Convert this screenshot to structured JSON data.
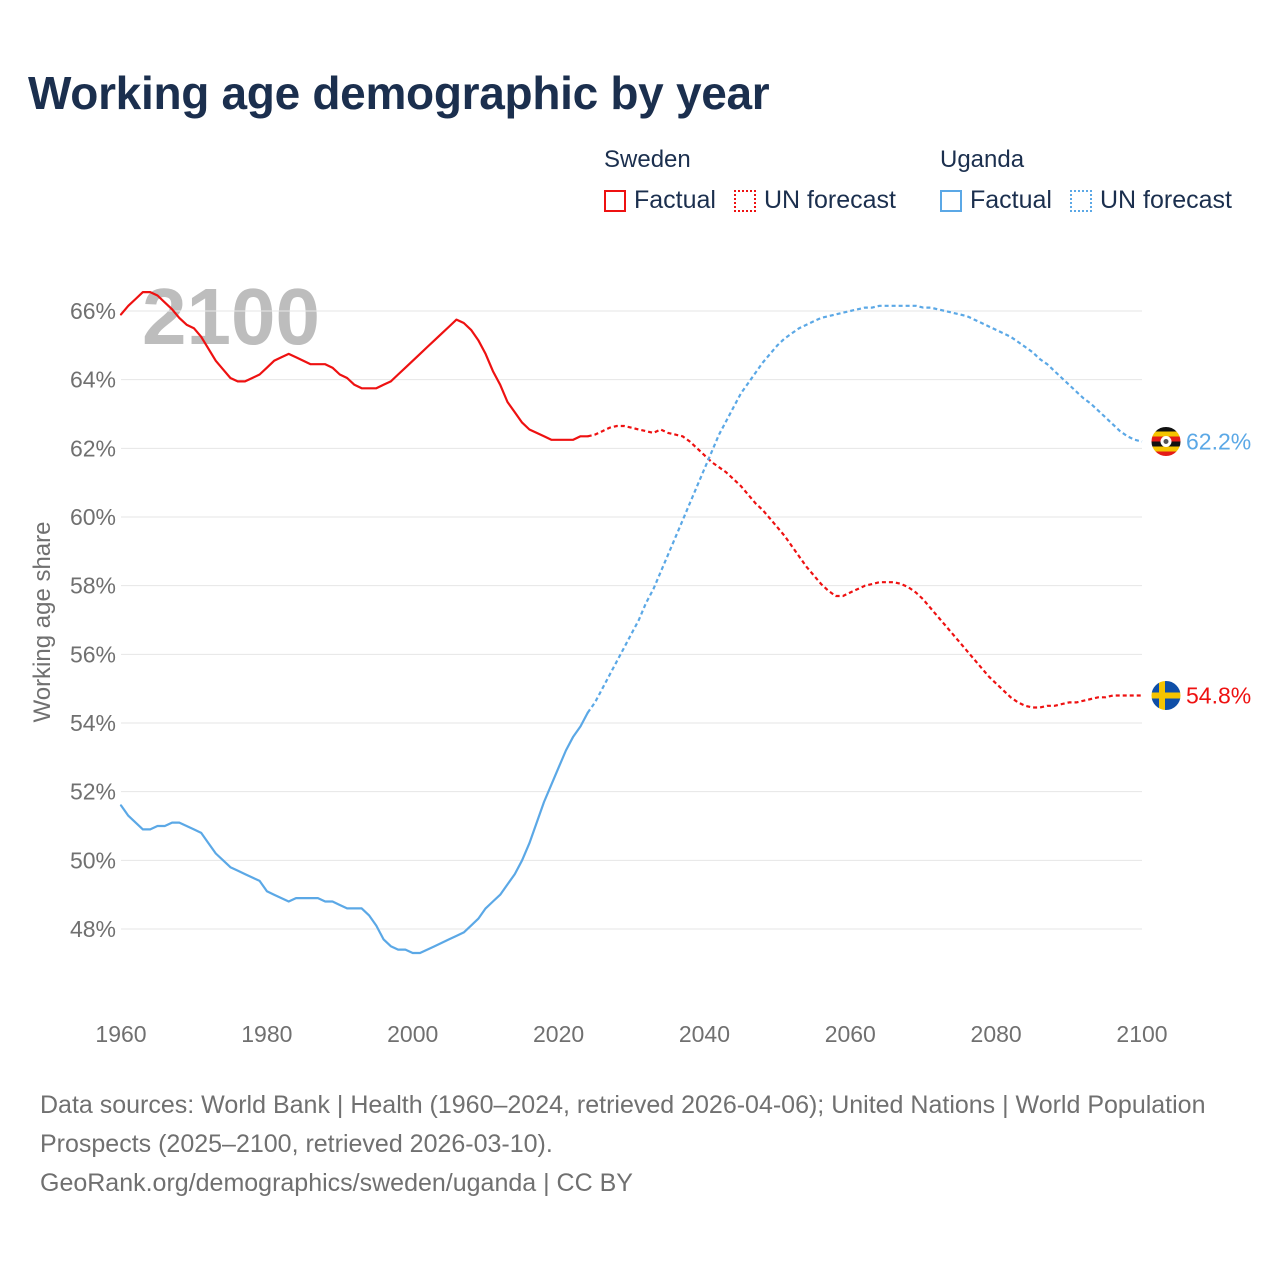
{
  "title": "Working age demographic by year",
  "legend": {
    "groups": [
      {
        "name": "Sweden",
        "color": "#ee1111",
        "factual_label": "Factual",
        "forecast_label": "UN forecast"
      },
      {
        "name": "Uganda",
        "color": "#5ba8e6",
        "factual_label": "Factual",
        "forecast_label": "UN forecast"
      }
    ]
  },
  "footer": {
    "sources": "Data sources: World Bank | Health (1960–2024, retrieved 2026-04-06); United Nations | World Population Prospects (2025–2100, retrieved 2026-03-10).",
    "attribution": "GeoRank.org/demographics/sweden/uganda | CC BY"
  },
  "chart_data": {
    "type": "line",
    "title": "Working age demographic by year",
    "ylabel": "Working age share",
    "xlabel": "",
    "year_watermark": "2100",
    "xlim": [
      1960,
      2100
    ],
    "ylim": [
      46,
      67
    ],
    "x_ticks": [
      1960,
      1980,
      2000,
      2020,
      2040,
      2060,
      2080,
      2100
    ],
    "y_ticks": [
      48,
      50,
      52,
      54,
      56,
      58,
      60,
      62,
      64,
      66
    ],
    "y_tick_suffix": "%",
    "grid": true,
    "forecast_start": 2024,
    "series": [
      {
        "name": "Sweden",
        "color": "#ee1111",
        "flag": "sweden-flag",
        "end_label": "54.8%",
        "points": [
          [
            1960,
            65.9
          ],
          [
            1961,
            66.15
          ],
          [
            1962,
            66.35
          ],
          [
            1963,
            66.55
          ],
          [
            1964,
            66.55
          ],
          [
            1965,
            66.45
          ],
          [
            1966,
            66.25
          ],
          [
            1967,
            66.05
          ],
          [
            1968,
            65.8
          ],
          [
            1969,
            65.6
          ],
          [
            1970,
            65.5
          ],
          [
            1971,
            65.25
          ],
          [
            1972,
            64.9
          ],
          [
            1973,
            64.55
          ],
          [
            1974,
            64.3
          ],
          [
            1975,
            64.05
          ],
          [
            1976,
            63.95
          ],
          [
            1977,
            63.95
          ],
          [
            1978,
            64.05
          ],
          [
            1979,
            64.15
          ],
          [
            1980,
            64.35
          ],
          [
            1981,
            64.55
          ],
          [
            1982,
            64.65
          ],
          [
            1983,
            64.75
          ],
          [
            1984,
            64.65
          ],
          [
            1985,
            64.55
          ],
          [
            1986,
            64.45
          ],
          [
            1987,
            64.45
          ],
          [
            1988,
            64.45
          ],
          [
            1989,
            64.35
          ],
          [
            1990,
            64.15
          ],
          [
            1991,
            64.05
          ],
          [
            1992,
            63.85
          ],
          [
            1993,
            63.75
          ],
          [
            1994,
            63.75
          ],
          [
            1995,
            63.75
          ],
          [
            1996,
            63.85
          ],
          [
            1997,
            63.95
          ],
          [
            1998,
            64.15
          ],
          [
            1999,
            64.35
          ],
          [
            2000,
            64.55
          ],
          [
            2001,
            64.75
          ],
          [
            2002,
            64.95
          ],
          [
            2003,
            65.15
          ],
          [
            2004,
            65.35
          ],
          [
            2005,
            65.55
          ],
          [
            2006,
            65.75
          ],
          [
            2007,
            65.65
          ],
          [
            2008,
            65.45
          ],
          [
            2009,
            65.15
          ],
          [
            2010,
            64.75
          ],
          [
            2011,
            64.25
          ],
          [
            2012,
            63.85
          ],
          [
            2013,
            63.35
          ],
          [
            2014,
            63.05
          ],
          [
            2015,
            62.75
          ],
          [
            2016,
            62.55
          ],
          [
            2017,
            62.45
          ],
          [
            2018,
            62.35
          ],
          [
            2019,
            62.25
          ],
          [
            2020,
            62.25
          ],
          [
            2021,
            62.25
          ],
          [
            2022,
            62.25
          ],
          [
            2023,
            62.35
          ],
          [
            2024,
            62.35
          ],
          [
            2025,
            62.4
          ],
          [
            2026,
            62.5
          ],
          [
            2027,
            62.6
          ],
          [
            2028,
            62.65
          ],
          [
            2029,
            62.65
          ],
          [
            2030,
            62.6
          ],
          [
            2031,
            62.55
          ],
          [
            2032,
            62.5
          ],
          [
            2033,
            62.45
          ],
          [
            2034,
            62.55
          ],
          [
            2035,
            62.45
          ],
          [
            2036,
            62.4
          ],
          [
            2037,
            62.35
          ],
          [
            2038,
            62.2
          ],
          [
            2039,
            62.0
          ],
          [
            2040,
            61.8
          ],
          [
            2041,
            61.6
          ],
          [
            2042,
            61.45
          ],
          [
            2043,
            61.3
          ],
          [
            2044,
            61.1
          ],
          [
            2045,
            60.9
          ],
          [
            2046,
            60.65
          ],
          [
            2047,
            60.4
          ],
          [
            2048,
            60.2
          ],
          [
            2049,
            59.95
          ],
          [
            2050,
            59.7
          ],
          [
            2051,
            59.45
          ],
          [
            2052,
            59.15
          ],
          [
            2053,
            58.85
          ],
          [
            2054,
            58.55
          ],
          [
            2055,
            58.3
          ],
          [
            2056,
            58.05
          ],
          [
            2057,
            57.85
          ],
          [
            2058,
            57.7
          ],
          [
            2059,
            57.7
          ],
          [
            2060,
            57.8
          ],
          [
            2061,
            57.9
          ],
          [
            2062,
            58.0
          ],
          [
            2063,
            58.05
          ],
          [
            2064,
            58.1
          ],
          [
            2065,
            58.1
          ],
          [
            2066,
            58.1
          ],
          [
            2067,
            58.05
          ],
          [
            2068,
            57.95
          ],
          [
            2069,
            57.8
          ],
          [
            2070,
            57.6
          ],
          [
            2071,
            57.35
          ],
          [
            2072,
            57.1
          ],
          [
            2073,
            56.85
          ],
          [
            2074,
            56.6
          ],
          [
            2075,
            56.35
          ],
          [
            2076,
            56.1
          ],
          [
            2077,
            55.85
          ],
          [
            2078,
            55.6
          ],
          [
            2079,
            55.35
          ],
          [
            2080,
            55.15
          ],
          [
            2081,
            54.95
          ],
          [
            2082,
            54.75
          ],
          [
            2083,
            54.6
          ],
          [
            2084,
            54.5
          ],
          [
            2085,
            54.45
          ],
          [
            2086,
            54.45
          ],
          [
            2087,
            54.5
          ],
          [
            2088,
            54.5
          ],
          [
            2089,
            54.55
          ],
          [
            2090,
            54.6
          ],
          [
            2091,
            54.6
          ],
          [
            2092,
            54.65
          ],
          [
            2093,
            54.7
          ],
          [
            2094,
            54.75
          ],
          [
            2095,
            54.75
          ],
          [
            2096,
            54.8
          ],
          [
            2097,
            54.8
          ],
          [
            2098,
            54.8
          ],
          [
            2099,
            54.8
          ],
          [
            2100,
            54.8
          ]
        ]
      },
      {
        "name": "Uganda",
        "color": "#5ba8e6",
        "flag": "uganda-flag",
        "end_label": "62.2%",
        "points": [
          [
            1960,
            51.6
          ],
          [
            1961,
            51.3
          ],
          [
            1962,
            51.1
          ],
          [
            1963,
            50.9
          ],
          [
            1964,
            50.9
          ],
          [
            1965,
            51.0
          ],
          [
            1966,
            51.0
          ],
          [
            1967,
            51.1
          ],
          [
            1968,
            51.1
          ],
          [
            1969,
            51.0
          ],
          [
            1970,
            50.9
          ],
          [
            1971,
            50.8
          ],
          [
            1972,
            50.5
          ],
          [
            1973,
            50.2
          ],
          [
            1974,
            50.0
          ],
          [
            1975,
            49.8
          ],
          [
            1976,
            49.7
          ],
          [
            1977,
            49.6
          ],
          [
            1978,
            49.5
          ],
          [
            1979,
            49.4
          ],
          [
            1980,
            49.1
          ],
          [
            1981,
            49.0
          ],
          [
            1982,
            48.9
          ],
          [
            1983,
            48.8
          ],
          [
            1984,
            48.9
          ],
          [
            1985,
            48.9
          ],
          [
            1986,
            48.9
          ],
          [
            1987,
            48.9
          ],
          [
            1988,
            48.8
          ],
          [
            1989,
            48.8
          ],
          [
            1990,
            48.7
          ],
          [
            1991,
            48.6
          ],
          [
            1992,
            48.6
          ],
          [
            1993,
            48.6
          ],
          [
            1994,
            48.4
          ],
          [
            1995,
            48.1
          ],
          [
            1996,
            47.7
          ],
          [
            1997,
            47.5
          ],
          [
            1998,
            47.4
          ],
          [
            1999,
            47.4
          ],
          [
            2000,
            47.3
          ],
          [
            2001,
            47.3
          ],
          [
            2002,
            47.4
          ],
          [
            2003,
            47.5
          ],
          [
            2004,
            47.6
          ],
          [
            2005,
            47.7
          ],
          [
            2006,
            47.8
          ],
          [
            2007,
            47.9
          ],
          [
            2008,
            48.1
          ],
          [
            2009,
            48.3
          ],
          [
            2010,
            48.6
          ],
          [
            2011,
            48.8
          ],
          [
            2012,
            49.0
          ],
          [
            2013,
            49.3
          ],
          [
            2014,
            49.6
          ],
          [
            2015,
            50.0
          ],
          [
            2016,
            50.5
          ],
          [
            2017,
            51.1
          ],
          [
            2018,
            51.7
          ],
          [
            2019,
            52.2
          ],
          [
            2020,
            52.7
          ],
          [
            2021,
            53.2
          ],
          [
            2022,
            53.6
          ],
          [
            2023,
            53.9
          ],
          [
            2024,
            54.3
          ],
          [
            2025,
            54.6
          ],
          [
            2026,
            55.0
          ],
          [
            2027,
            55.4
          ],
          [
            2028,
            55.8
          ],
          [
            2029,
            56.2
          ],
          [
            2030,
            56.6
          ],
          [
            2031,
            57.0
          ],
          [
            2032,
            57.5
          ],
          [
            2033,
            57.9
          ],
          [
            2034,
            58.4
          ],
          [
            2035,
            58.9
          ],
          [
            2036,
            59.4
          ],
          [
            2037,
            59.9
          ],
          [
            2038,
            60.4
          ],
          [
            2039,
            60.9
          ],
          [
            2040,
            61.4
          ],
          [
            2041,
            61.9
          ],
          [
            2042,
            62.4
          ],
          [
            2043,
            62.8
          ],
          [
            2044,
            63.2
          ],
          [
            2045,
            63.6
          ],
          [
            2046,
            63.9
          ],
          [
            2047,
            64.2
          ],
          [
            2048,
            64.5
          ],
          [
            2049,
            64.75
          ],
          [
            2050,
            65.0
          ],
          [
            2051,
            65.2
          ],
          [
            2052,
            65.35
          ],
          [
            2053,
            65.5
          ],
          [
            2054,
            65.6
          ],
          [
            2055,
            65.7
          ],
          [
            2056,
            65.8
          ],
          [
            2057,
            65.85
          ],
          [
            2058,
            65.9
          ],
          [
            2059,
            65.95
          ],
          [
            2060,
            66.0
          ],
          [
            2061,
            66.05
          ],
          [
            2062,
            66.1
          ],
          [
            2063,
            66.1
          ],
          [
            2064,
            66.15
          ],
          [
            2065,
            66.15
          ],
          [
            2066,
            66.15
          ],
          [
            2067,
            66.15
          ],
          [
            2068,
            66.15
          ],
          [
            2069,
            66.15
          ],
          [
            2070,
            66.1
          ],
          [
            2071,
            66.1
          ],
          [
            2072,
            66.05
          ],
          [
            2073,
            66.0
          ],
          [
            2074,
            65.95
          ],
          [
            2075,
            65.9
          ],
          [
            2076,
            65.85
          ],
          [
            2077,
            65.75
          ],
          [
            2078,
            65.65
          ],
          [
            2079,
            65.55
          ],
          [
            2080,
            65.45
          ],
          [
            2081,
            65.35
          ],
          [
            2082,
            65.25
          ],
          [
            2083,
            65.1
          ],
          [
            2084,
            64.95
          ],
          [
            2085,
            64.8
          ],
          [
            2086,
            64.6
          ],
          [
            2087,
            64.45
          ],
          [
            2088,
            64.25
          ],
          [
            2089,
            64.05
          ],
          [
            2090,
            63.85
          ],
          [
            2091,
            63.65
          ],
          [
            2092,
            63.45
          ],
          [
            2093,
            63.3
          ],
          [
            2094,
            63.1
          ],
          [
            2095,
            62.9
          ],
          [
            2096,
            62.7
          ],
          [
            2097,
            62.5
          ],
          [
            2098,
            62.35
          ],
          [
            2099,
            62.25
          ],
          [
            2100,
            62.2
          ]
        ]
      }
    ]
  }
}
